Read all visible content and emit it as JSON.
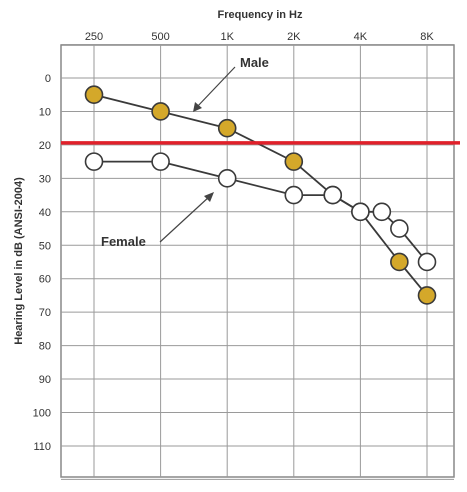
{
  "chart_data": {
    "type": "line",
    "title": "",
    "xlabel": "Frequency in Hz",
    "ylabel": "Hearing Level in dB (ANSI-2004)",
    "x_ticks": [
      "250",
      "500",
      "1K",
      "2K",
      "4K",
      "8K"
    ],
    "x_values": [
      250,
      500,
      1000,
      2000,
      4000,
      8000
    ],
    "x_scale": "log2",
    "y_ticks": [
      0,
      10,
      20,
      30,
      40,
      50,
      60,
      70,
      80,
      90,
      100,
      110
    ],
    "ylim": [
      -10,
      120
    ],
    "y_inverted": true,
    "grid": true,
    "series": [
      {
        "name": "Male",
        "color": "#d4a82a",
        "fill": "filled",
        "points": [
          {
            "x": 250,
            "y": 5
          },
          {
            "x": 500,
            "y": 10
          },
          {
            "x": 1000,
            "y": 15
          },
          {
            "x": 2000,
            "y": 25
          },
          {
            "x": 3000,
            "y": 35
          },
          {
            "x": 4000,
            "y": 40
          },
          {
            "x": 6000,
            "y": 55
          },
          {
            "x": 8000,
            "y": 65
          }
        ]
      },
      {
        "name": "Female",
        "color": "#ffffff",
        "fill": "hollow",
        "points": [
          {
            "x": 250,
            "y": 25
          },
          {
            "x": 500,
            "y": 25
          },
          {
            "x": 1000,
            "y": 30
          },
          {
            "x": 2000,
            "y": 35
          },
          {
            "x": 3000,
            "y": 35
          },
          {
            "x": 4000,
            "y": 40
          },
          {
            "x": 5000,
            "y": 40
          },
          {
            "x": 6000,
            "y": 45
          },
          {
            "x": 8000,
            "y": 55
          }
        ]
      }
    ],
    "reference_line": {
      "y": 20,
      "color": "#e0202a"
    }
  }
}
